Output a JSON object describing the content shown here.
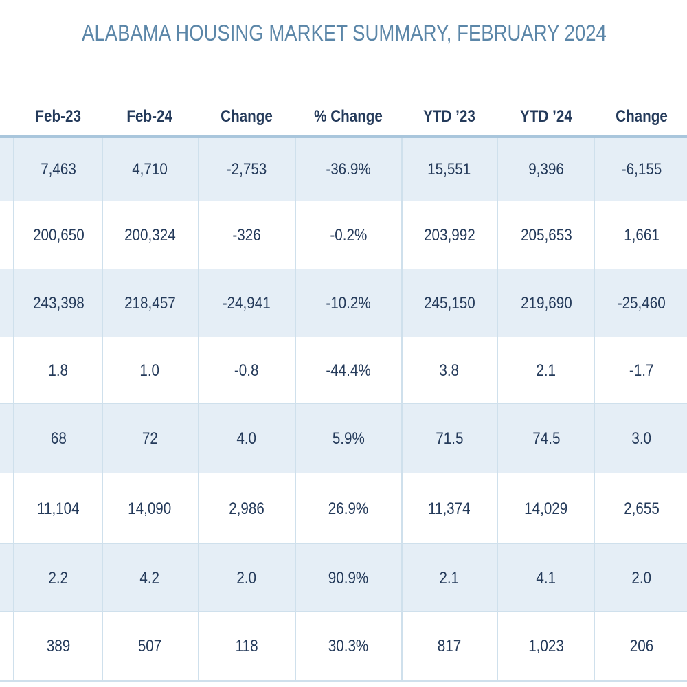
{
  "title": "ALABAMA HOUSING MARKET SUMMARY, FEBRUARY 2024",
  "columns": [
    "Feb-23",
    "Feb-24",
    "Change",
    "% Change",
    "YTD ’23",
    "YTD ’24",
    "Change"
  ],
  "rows": [
    [
      "7,463",
      "4,710",
      "-2,753",
      "-36.9%",
      "15,551",
      "9,396",
      "-6,155"
    ],
    [
      "200,650",
      "200,324",
      "-326",
      "-0.2%",
      "203,992",
      "205,653",
      "1,661"
    ],
    [
      "243,398",
      "218,457",
      "-24,941",
      "-10.2%",
      "245,150",
      "219,690",
      "-25,460"
    ],
    [
      "1.8",
      "1.0",
      "-0.8",
      "-44.4%",
      "3.8",
      "2.1",
      "-1.7"
    ],
    [
      "68",
      "72",
      "4.0",
      "5.9%",
      "71.5",
      "74.5",
      "3.0"
    ],
    [
      "11,104",
      "14,090",
      "2,986",
      "26.9%",
      "11,374",
      "14,029",
      "2,655"
    ],
    [
      "2.2",
      "4.2",
      "2.0",
      "90.9%",
      "2.1",
      "4.1",
      "2.0"
    ],
    [
      "389",
      "507",
      "118",
      "30.3%",
      "817",
      "1,023",
      "206"
    ]
  ],
  "colors": {
    "title": "#5b86a8",
    "text": "#243a5a",
    "shaded_row": "#e5eef6",
    "grid_line": "#cfe0ec",
    "header_rule": "#a9c6dc"
  }
}
